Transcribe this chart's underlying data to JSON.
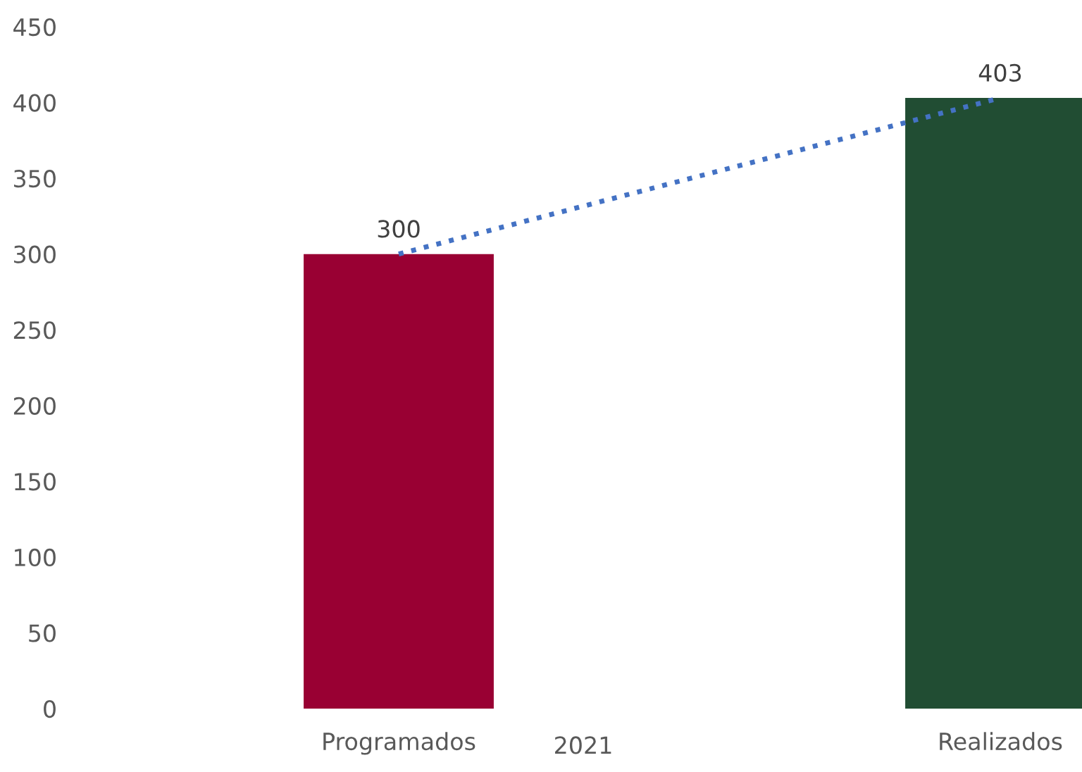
{
  "chart_data": {
    "type": "bar",
    "xlabel": "2021",
    "categories": [
      "Programados",
      "Realizados"
    ],
    "series": [
      {
        "colors": [
          "#990033",
          "#214d33"
        ],
        "values": [
          300,
          403
        ],
        "value_labels": [
          "300",
          "403"
        ]
      },
      {
        "type": "line",
        "color": "#4472c4",
        "line_style": "dotted",
        "values": [
          300,
          403
        ]
      }
    ],
    "ylim": [
      0,
      450
    ],
    "yticks": [
      0,
      50,
      100,
      150,
      200,
      250,
      300,
      350,
      400,
      450
    ],
    "grid": false,
    "legend": false
  }
}
